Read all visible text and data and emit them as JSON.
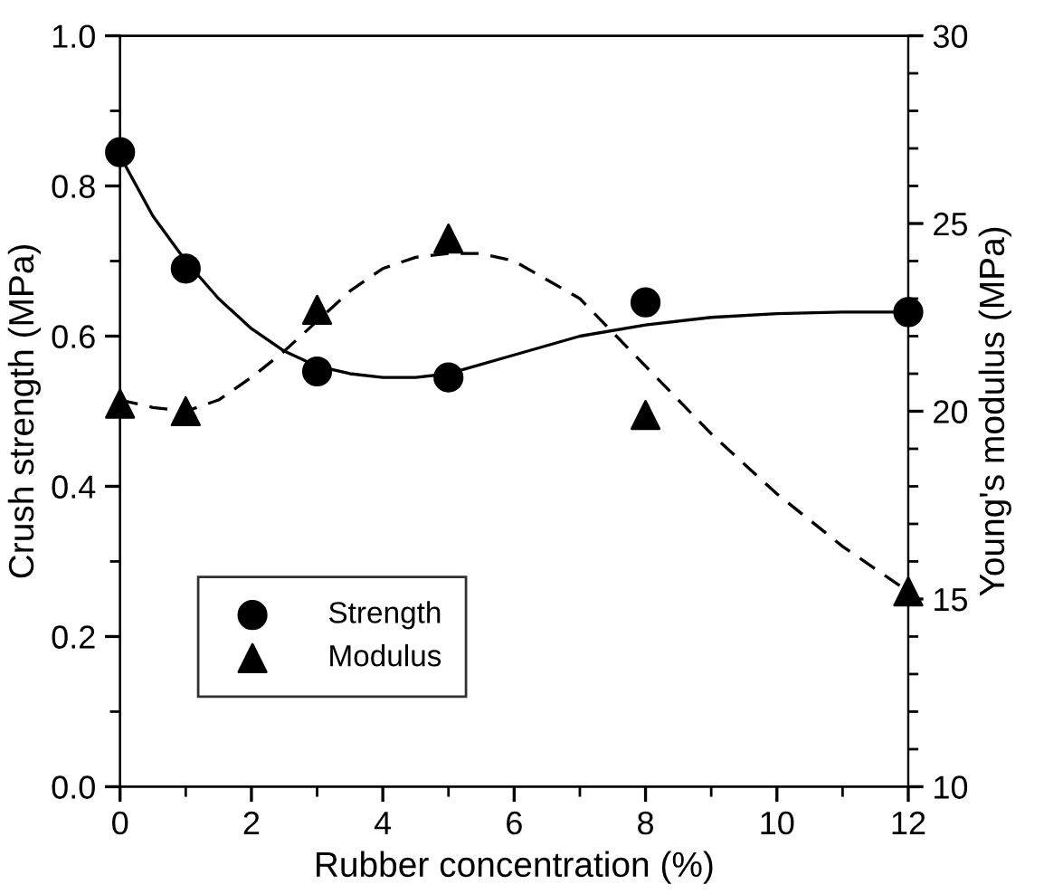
{
  "chart_data": {
    "type": "scatter",
    "xlabel": "Rubber concentration (%)",
    "ylabel": "Crush strength (MPa)",
    "y2label": "Young's modulus (MPa)",
    "xlim": [
      0,
      12
    ],
    "xticks": [
      0,
      2,
      4,
      6,
      8,
      10,
      12
    ],
    "ylim": [
      0,
      1
    ],
    "yticks": [
      {
        "value": 0,
        "label": "0.0"
      },
      {
        "value": 0.2,
        "label": "0.2"
      },
      {
        "value": 0.4,
        "label": "0.4"
      },
      {
        "value": 0.6,
        "label": "0.6"
      },
      {
        "value": 0.8,
        "label": "0.8"
      },
      {
        "value": 1,
        "label": "1.0"
      }
    ],
    "y2lim": [
      10,
      30
    ],
    "y2ticks": [
      10,
      15,
      20,
      25,
      30
    ],
    "legend": "bottom left",
    "grid": false,
    "series": [
      {
        "name": "Strength",
        "marker": "circle",
        "color": "#000000",
        "x": [
          0,
          1,
          3,
          5,
          8,
          12
        ],
        "values": [
          0.845,
          0.69,
          0.553,
          0.545,
          0.645,
          0.632
        ]
      },
      {
        "name": "Modulus",
        "marker": "triangle",
        "axis": "y2",
        "color": "#000000",
        "x": [
          0,
          1,
          3,
          5,
          8,
          12
        ],
        "values": [
          20.2,
          20.0,
          22.7,
          24.6,
          19.9,
          15.2
        ]
      },
      {
        "type": "line",
        "line_style": "solid",
        "marker": "none",
        "color": "#000000",
        "x": [
          0,
          0.5,
          1,
          1.5,
          2,
          2.5,
          3,
          3.5,
          4,
          4.5,
          5,
          6,
          7,
          8,
          9,
          10,
          11,
          12
        ],
        "values": [
          0.84,
          0.76,
          0.7,
          0.65,
          0.61,
          0.58,
          0.56,
          0.55,
          0.545,
          0.545,
          0.55,
          0.575,
          0.6,
          0.615,
          0.625,
          0.63,
          0.632,
          0.632
        ]
      },
      {
        "type": "line",
        "line_style": "dashed",
        "marker": "none",
        "axis": "y2",
        "color": "#000000",
        "x": [
          0,
          0.5,
          1,
          1.5,
          2,
          2.5,
          3,
          3.5,
          4,
          4.5,
          5,
          5.5,
          6,
          7,
          8,
          9,
          10,
          11,
          12
        ],
        "values": [
          20.3,
          20.1,
          20.0,
          20.3,
          20.9,
          21.6,
          22.4,
          23.2,
          23.8,
          24.1,
          24.2,
          24.2,
          24.0,
          23.0,
          21.2,
          19.4,
          17.8,
          16.4,
          15.2
        ]
      }
    ]
  }
}
